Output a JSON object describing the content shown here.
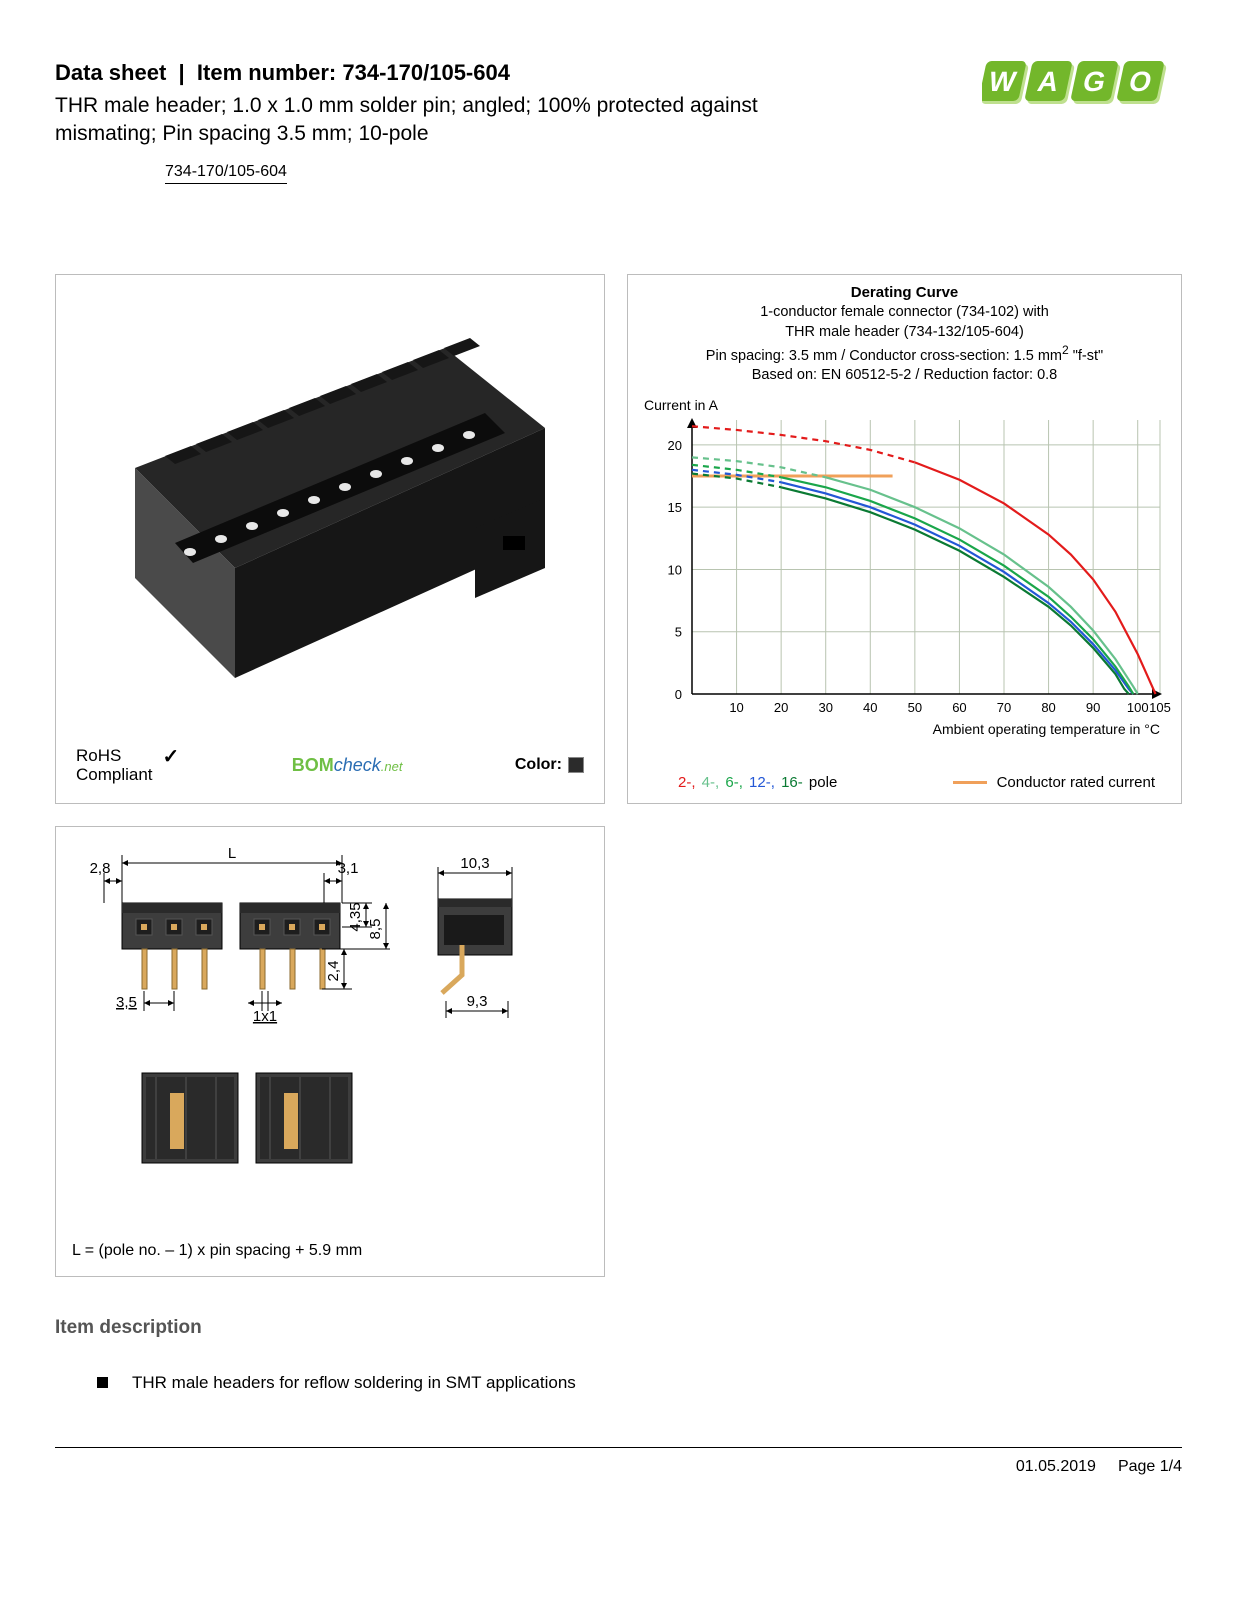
{
  "header": {
    "title_prefix": "Data sheet",
    "title_label": "Item number:",
    "item_number": "734-170/105-604",
    "subtitle": "THR male header; 1.0 x 1.0 mm solder pin; angled; 100% protected against mismating; Pin spacing 3.5 mm; 10-pole",
    "item_link": "734-170/105-604"
  },
  "logo": {
    "text": "WAGO",
    "fill": "#73b72b",
    "shadow": "#bfe08f"
  },
  "product_panel": {
    "rohs_line1": "RoHS",
    "rohs_line2": "Compliant",
    "bom_bom": "BOM",
    "bom_check": "check",
    "bom_net": ".net",
    "color_label": "Color:",
    "color_swatch": "#2b2b2b",
    "connector_body": "#262626",
    "connector_dark": "#161616",
    "connector_light": "#4a4a4a",
    "pin_color": "#e8e8e8"
  },
  "chart": {
    "title_main": "Derating Curve",
    "title_l1": "1-conductor female connector (734-102) with",
    "title_l2": "THR male header (734-132/105-604)",
    "title_l3_a": "Pin spacing: 3.5 mm / Conductor cross-section: 1.5 mm",
    "title_l3_b": " \"f-st\"",
    "title_l4": "Based on: EN 60512-5-2 / Reduction factor: 0.8",
    "y_label": "Current in A",
    "x_label": "Ambient operating temperature in °C",
    "xlim": [
      0,
      105
    ],
    "ylim": [
      0,
      22
    ],
    "xticks": [
      10,
      20,
      30,
      40,
      50,
      60,
      70,
      80,
      90,
      100,
      105
    ],
    "yticks": [
      0,
      5,
      10,
      15,
      20
    ],
    "grid_color": "#b8c4b0",
    "axis_color": "#000000",
    "background": "#ffffff",
    "series": {
      "pole2": {
        "color": "#e31b1b",
        "dash_until_x": 45,
        "points": [
          [
            0,
            21.5
          ],
          [
            10,
            21.2
          ],
          [
            20,
            20.8
          ],
          [
            30,
            20.3
          ],
          [
            40,
            19.6
          ],
          [
            45,
            19.1
          ],
          [
            50,
            18.6
          ],
          [
            60,
            17.2
          ],
          [
            70,
            15.3
          ],
          [
            80,
            12.8
          ],
          [
            85,
            11.2
          ],
          [
            90,
            9.2
          ],
          [
            95,
            6.6
          ],
          [
            100,
            3.2
          ],
          [
            103,
            0.8
          ],
          [
            104,
            0
          ]
        ]
      },
      "pole4": {
        "color": "#67c18c",
        "dash_until_x": 20,
        "points": [
          [
            0,
            19.0
          ],
          [
            10,
            18.7
          ],
          [
            20,
            18.2
          ],
          [
            30,
            17.4
          ],
          [
            40,
            16.4
          ],
          [
            50,
            15.0
          ],
          [
            60,
            13.3
          ],
          [
            70,
            11.2
          ],
          [
            80,
            8.6
          ],
          [
            85,
            7.0
          ],
          [
            90,
            5.1
          ],
          [
            95,
            2.8
          ],
          [
            99,
            0.6
          ],
          [
            100,
            0
          ]
        ]
      },
      "pole6": {
        "color": "#1aa64a",
        "dash_until_x": 15,
        "points": [
          [
            0,
            18.4
          ],
          [
            10,
            18.0
          ],
          [
            20,
            17.4
          ],
          [
            30,
            16.6
          ],
          [
            40,
            15.5
          ],
          [
            50,
            14.1
          ],
          [
            60,
            12.4
          ],
          [
            70,
            10.3
          ],
          [
            80,
            7.8
          ],
          [
            85,
            6.2
          ],
          [
            90,
            4.4
          ],
          [
            95,
            2.2
          ],
          [
            98,
            0.6
          ],
          [
            99,
            0
          ]
        ]
      },
      "pole12": {
        "color": "#2357d6",
        "dash_until_x": 12,
        "points": [
          [
            0,
            18.0
          ],
          [
            10,
            17.6
          ],
          [
            20,
            17.0
          ],
          [
            30,
            16.1
          ],
          [
            40,
            15.0
          ],
          [
            50,
            13.6
          ],
          [
            60,
            11.9
          ],
          [
            70,
            9.8
          ],
          [
            80,
            7.3
          ],
          [
            85,
            5.8
          ],
          [
            90,
            4.0
          ],
          [
            95,
            1.9
          ],
          [
            98,
            0.4
          ],
          [
            99,
            0
          ]
        ]
      },
      "pole16": {
        "color": "#0a7a33",
        "dash_until_x": 10,
        "points": [
          [
            0,
            17.7
          ],
          [
            10,
            17.3
          ],
          [
            20,
            16.6
          ],
          [
            30,
            15.7
          ],
          [
            40,
            14.6
          ],
          [
            50,
            13.2
          ],
          [
            60,
            11.5
          ],
          [
            70,
            9.4
          ],
          [
            80,
            7.0
          ],
          [
            85,
            5.5
          ],
          [
            90,
            3.7
          ],
          [
            95,
            1.6
          ],
          [
            97,
            0.4
          ],
          [
            98,
            0
          ]
        ]
      },
      "rated": {
        "color": "#f0a05a",
        "points": [
          [
            0,
            17.5
          ],
          [
            45,
            17.5
          ]
        ]
      }
    },
    "legend": {
      "poles": [
        {
          "label": "2-",
          "color": "#e31b1b"
        },
        {
          "label": " 4-",
          "color": "#67c18c"
        },
        {
          "label": " 6-",
          "color": "#1aa64a"
        },
        {
          "label": " 12-",
          "color": "#2357d6"
        },
        {
          "label": " 16-",
          "color": "#0a7a33"
        }
      ],
      "poles_suffix": " pole",
      "rated_label": "Conductor rated current",
      "rated_color": "#f0a05a"
    }
  },
  "dimensions": {
    "formula": "L = (pole no. – 1) x pin spacing + 5.9 mm",
    "labels": {
      "L": "L",
      "d28": "2,8",
      "d31": "3,1",
      "d435": "4,35",
      "d85": "8,5",
      "d35": "3,5",
      "d1x1": "1x1",
      "d24": "2,4",
      "d103": "10,3",
      "d93": "9,3"
    },
    "body_color": "#3d3d3d",
    "body_dark": "#2a2a2a",
    "pin_color": "#d9a85c",
    "line_color": "#000000"
  },
  "description": {
    "heading": "Item description",
    "bullet1": "THR male headers for reflow soldering in SMT applications"
  },
  "footer": {
    "date": "01.05.2019",
    "page": "Page 1/4"
  }
}
